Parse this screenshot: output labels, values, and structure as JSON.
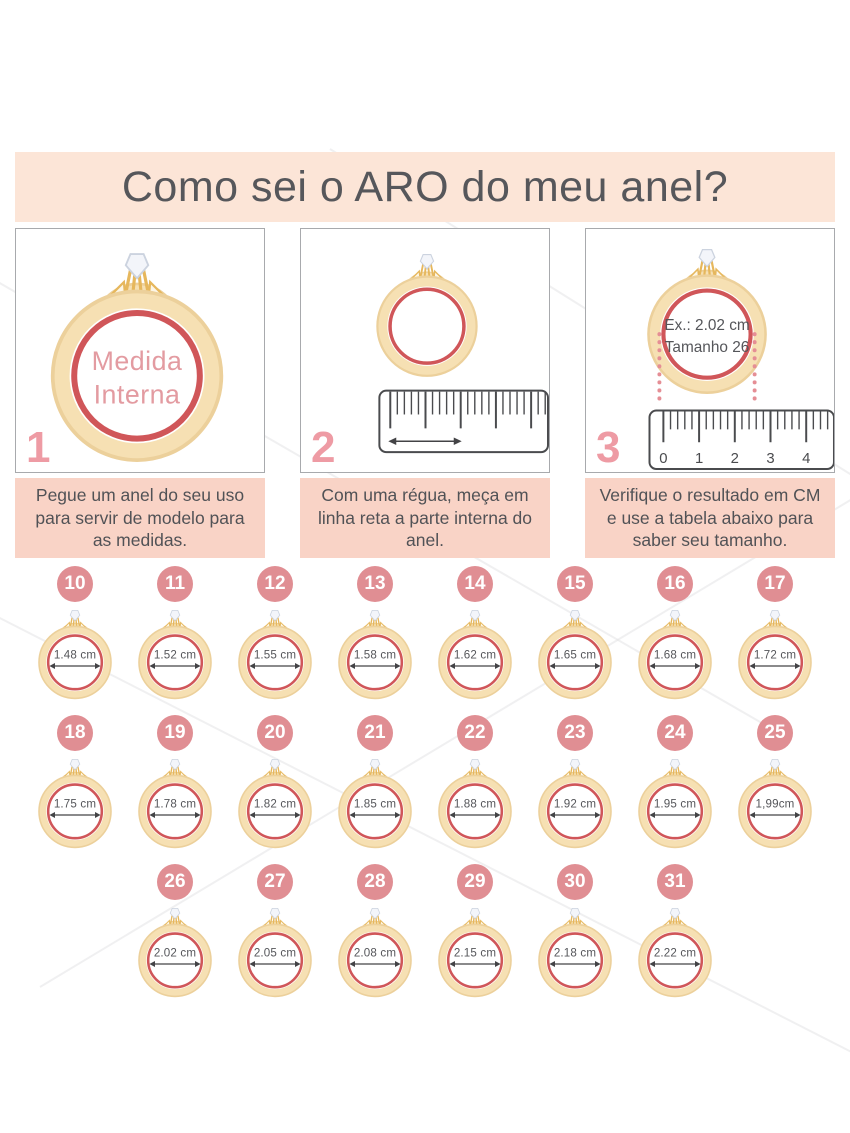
{
  "page": {
    "title": "Como sei o ARO do meu anel?"
  },
  "steps": [
    {
      "number": "1",
      "ring_label": [
        "Medida",
        "Interna"
      ],
      "caption": "Pegue um anel do seu uso para servir de modelo para as medidas."
    },
    {
      "number": "2",
      "caption": "Com uma régua, meça em linha reta a parte interna do anel."
    },
    {
      "number": "3",
      "example": [
        "Ex.: 2.02 cm",
        "Tamanho 26"
      ],
      "ruler_labels": [
        "0",
        "1",
        "2",
        "3",
        "4"
      ],
      "caption": "Verifique o resultado em CM e use a tabela abaixo para saber seu tamanho."
    }
  ],
  "size_table": {
    "rows": [
      [
        {
          "size": "10",
          "measure": "1.48 cm"
        },
        {
          "size": "11",
          "measure": "1.52 cm"
        },
        {
          "size": "12",
          "measure": "1.55 cm"
        },
        {
          "size": "13",
          "measure": "1.58 cm"
        },
        {
          "size": "14",
          "measure": "1.62 cm"
        },
        {
          "size": "15",
          "measure": "1.65 cm"
        },
        {
          "size": "16",
          "measure": "1.68 cm"
        },
        {
          "size": "17",
          "measure": "1.72 cm"
        }
      ],
      [
        {
          "size": "18",
          "measure": "1.75 cm"
        },
        {
          "size": "19",
          "measure": "1.78 cm"
        },
        {
          "size": "20",
          "measure": "1.82 cm"
        },
        {
          "size": "21",
          "measure": "1.85 cm"
        },
        {
          "size": "22",
          "measure": "1.88 cm"
        },
        {
          "size": "23",
          "measure": "1.92 cm"
        },
        {
          "size": "24",
          "measure": "1.95 cm"
        },
        {
          "size": "25",
          "measure": "1,99cm"
        }
      ],
      [
        {
          "size": "26",
          "measure": "2.02 cm"
        },
        {
          "size": "27",
          "measure": "2.05 cm"
        },
        {
          "size": "28",
          "measure": "2.08 cm"
        },
        {
          "size": "29",
          "measure": "2.15 cm"
        },
        {
          "size": "30",
          "measure": "2.18 cm"
        },
        {
          "size": "31",
          "measure": "2.22 cm"
        }
      ]
    ]
  },
  "colors": {
    "title_bg": "#fce5d7",
    "caption_bg": "#f9d3c6",
    "badge_bg": "#e08e93",
    "step_number": "#ee9ba4",
    "ring_gold": "#f6e0b3",
    "ring_gold_edge": "#ecd09b",
    "ring_red": "#d05659",
    "text_dark": "#55565a",
    "medida_pink": "#e39ba1"
  }
}
